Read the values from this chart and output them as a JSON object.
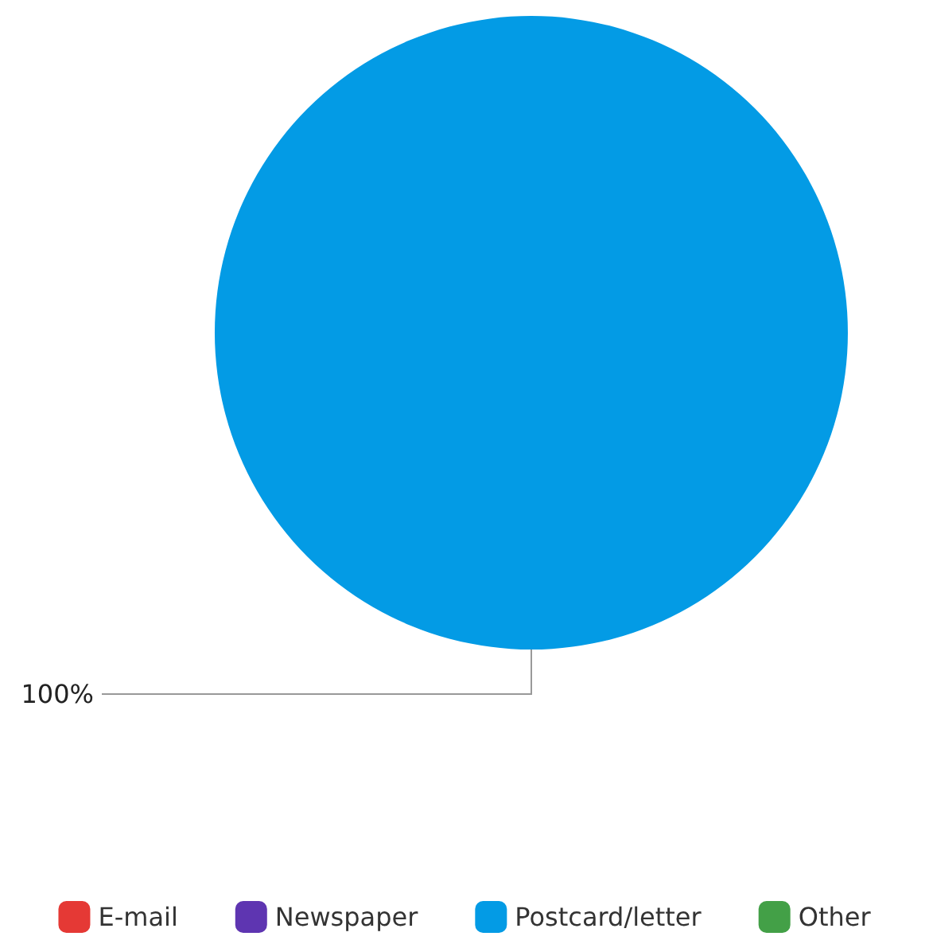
{
  "chart_data": {
    "type": "pie",
    "categories": [
      "E-mail",
      "Newspaper",
      "Postcard/letter",
      "Other"
    ],
    "values": [
      0,
      0,
      100,
      0
    ],
    "colors": [
      "#e53935",
      "#5e35b1",
      "#039be5",
      "#43a047"
    ],
    "value_labels": [
      null,
      null,
      "100%",
      null
    ],
    "legend": "bottom"
  }
}
